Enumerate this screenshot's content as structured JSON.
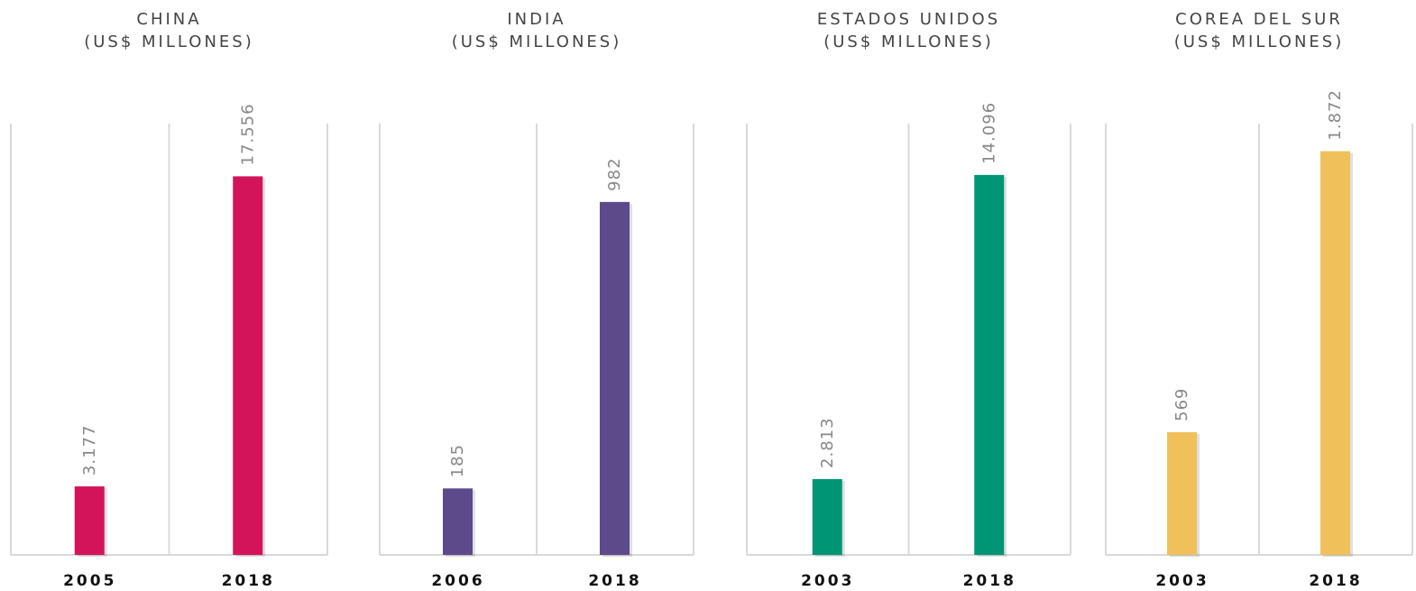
{
  "chart_data": [
    {
      "type": "bar",
      "title": "CHINA",
      "subtitle": "(US$ MILLONES)",
      "categories": [
        "2005",
        "2018"
      ],
      "values": [
        3177,
        17556
      ],
      "value_labels": [
        "3.177",
        "17.556"
      ],
      "color": "#d4145a",
      "ylim": [
        0,
        20000
      ]
    },
    {
      "type": "bar",
      "title": "INDIA",
      "subtitle": "(US$ MILLONES)",
      "categories": [
        "2006",
        "2018"
      ],
      "values": [
        185,
        982
      ],
      "value_labels": [
        "185",
        "982"
      ],
      "color": "#5c4a8a",
      "ylim": [
        0,
        1200
      ]
    },
    {
      "type": "bar",
      "title": "ESTADOS UNIDOS",
      "subtitle": "(US$ MILLONES)",
      "categories": [
        "2003",
        "2018"
      ],
      "values": [
        2813,
        14096
      ],
      "value_labels": [
        "2.813",
        "14.096"
      ],
      "color": "#009675",
      "ylim": [
        0,
        16000
      ]
    },
    {
      "type": "bar",
      "title": "COREA DEL SUR",
      "subtitle": "(US$ MILLONES)",
      "categories": [
        "2003",
        "2018"
      ],
      "values": [
        569,
        1872
      ],
      "value_labels": [
        "569",
        "1.872"
      ],
      "color": "#f0c05a",
      "ylim": [
        0,
        2000
      ]
    }
  ]
}
